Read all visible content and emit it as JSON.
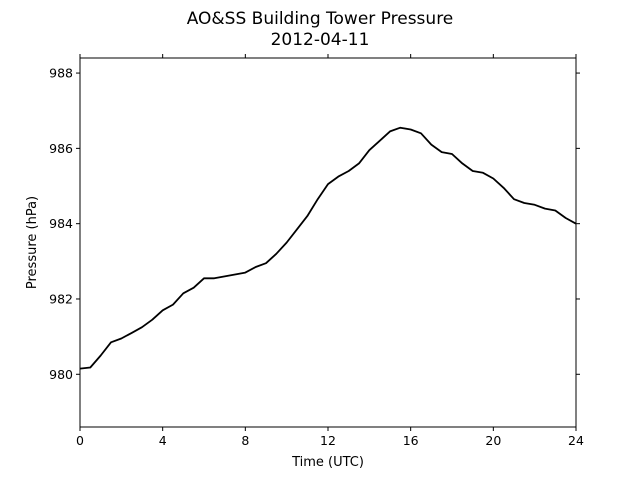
{
  "chart_data": {
    "type": "line",
    "title": "AO&SS Building Tower Pressure",
    "subtitle": "2012-04-11",
    "xlabel": "Time (UTC)",
    "ylabel": "Pressure (hPa)",
    "xlim": [
      0,
      24
    ],
    "ylim": [
      978.6,
      988.4
    ],
    "xticks": [
      0,
      4,
      8,
      12,
      16,
      20,
      24
    ],
    "yticks": [
      980,
      982,
      984,
      986,
      988
    ],
    "grid": false,
    "line_color": "#000000",
    "series": [
      {
        "x": [
          0,
          0.5,
          1,
          1.5,
          2,
          2.5,
          3,
          3.5,
          4,
          4.5,
          5,
          5.5,
          6,
          6.5,
          7,
          7.5,
          8,
          8.5,
          9,
          9.5,
          10,
          10.5,
          11,
          11.5,
          12,
          12.5,
          13,
          13.5,
          14,
          14.5,
          15,
          15.5,
          16,
          16.5,
          17,
          17.5,
          18,
          18.5,
          19,
          19.5,
          20,
          20.5,
          21,
          21.5,
          22,
          22.5,
          23,
          23.5,
          24
        ],
        "y": [
          980.15,
          980.18,
          980.5,
          980.85,
          980.95,
          981.1,
          981.25,
          981.45,
          981.7,
          981.85,
          982.15,
          982.3,
          982.55,
          982.55,
          982.6,
          982.65,
          982.7,
          982.85,
          982.95,
          983.2,
          983.5,
          983.85,
          984.2,
          984.65,
          985.05,
          985.25,
          985.4,
          985.6,
          985.95,
          986.2,
          986.45,
          986.55,
          986.5,
          986.4,
          986.1,
          985.9,
          985.85,
          985.6,
          985.4,
          985.35,
          985.2,
          984.95,
          984.65,
          984.55,
          984.5,
          984.4,
          984.35,
          984.15,
          984.0
        ]
      }
    ]
  }
}
